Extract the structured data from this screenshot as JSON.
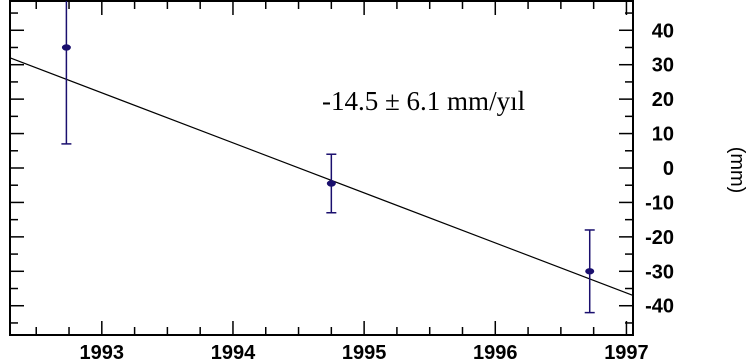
{
  "chart_data": {
    "type": "scatter",
    "title": "",
    "xlabel": "",
    "ylabel": "(mm)",
    "xlim": [
      1992.3,
      1997.05
    ],
    "ylim": [
      -48.5,
      48.5
    ],
    "x_ticks": [
      1993,
      1994,
      1995,
      1996,
      1997
    ],
    "y_ticks": [
      40,
      30,
      20,
      10,
      0,
      -10,
      -20,
      -30,
      -40
    ],
    "y_tick_labels": [
      "40",
      "30",
      "20",
      "10",
      "0",
      "-10",
      "-20",
      "-30",
      "-40"
    ],
    "grid": false,
    "points": [
      {
        "x": 1992.73,
        "y": 35,
        "err_low": 7,
        "err_high": 48.5
      },
      {
        "x": 1994.75,
        "y": -4.5,
        "err_low": -13,
        "err_high": 4
      },
      {
        "x": 1996.72,
        "y": -30,
        "err_low": -42,
        "err_high": -18
      }
    ],
    "trend_line": {
      "x": [
        1992.3,
        1997.05
      ],
      "y": [
        32.0,
        -37.0
      ]
    },
    "annotation": "-14.5 ± 6.1 mm/yıl",
    "colors": {
      "points": "#1a0f6e",
      "line": "#000000",
      "axes": "#000000"
    }
  }
}
